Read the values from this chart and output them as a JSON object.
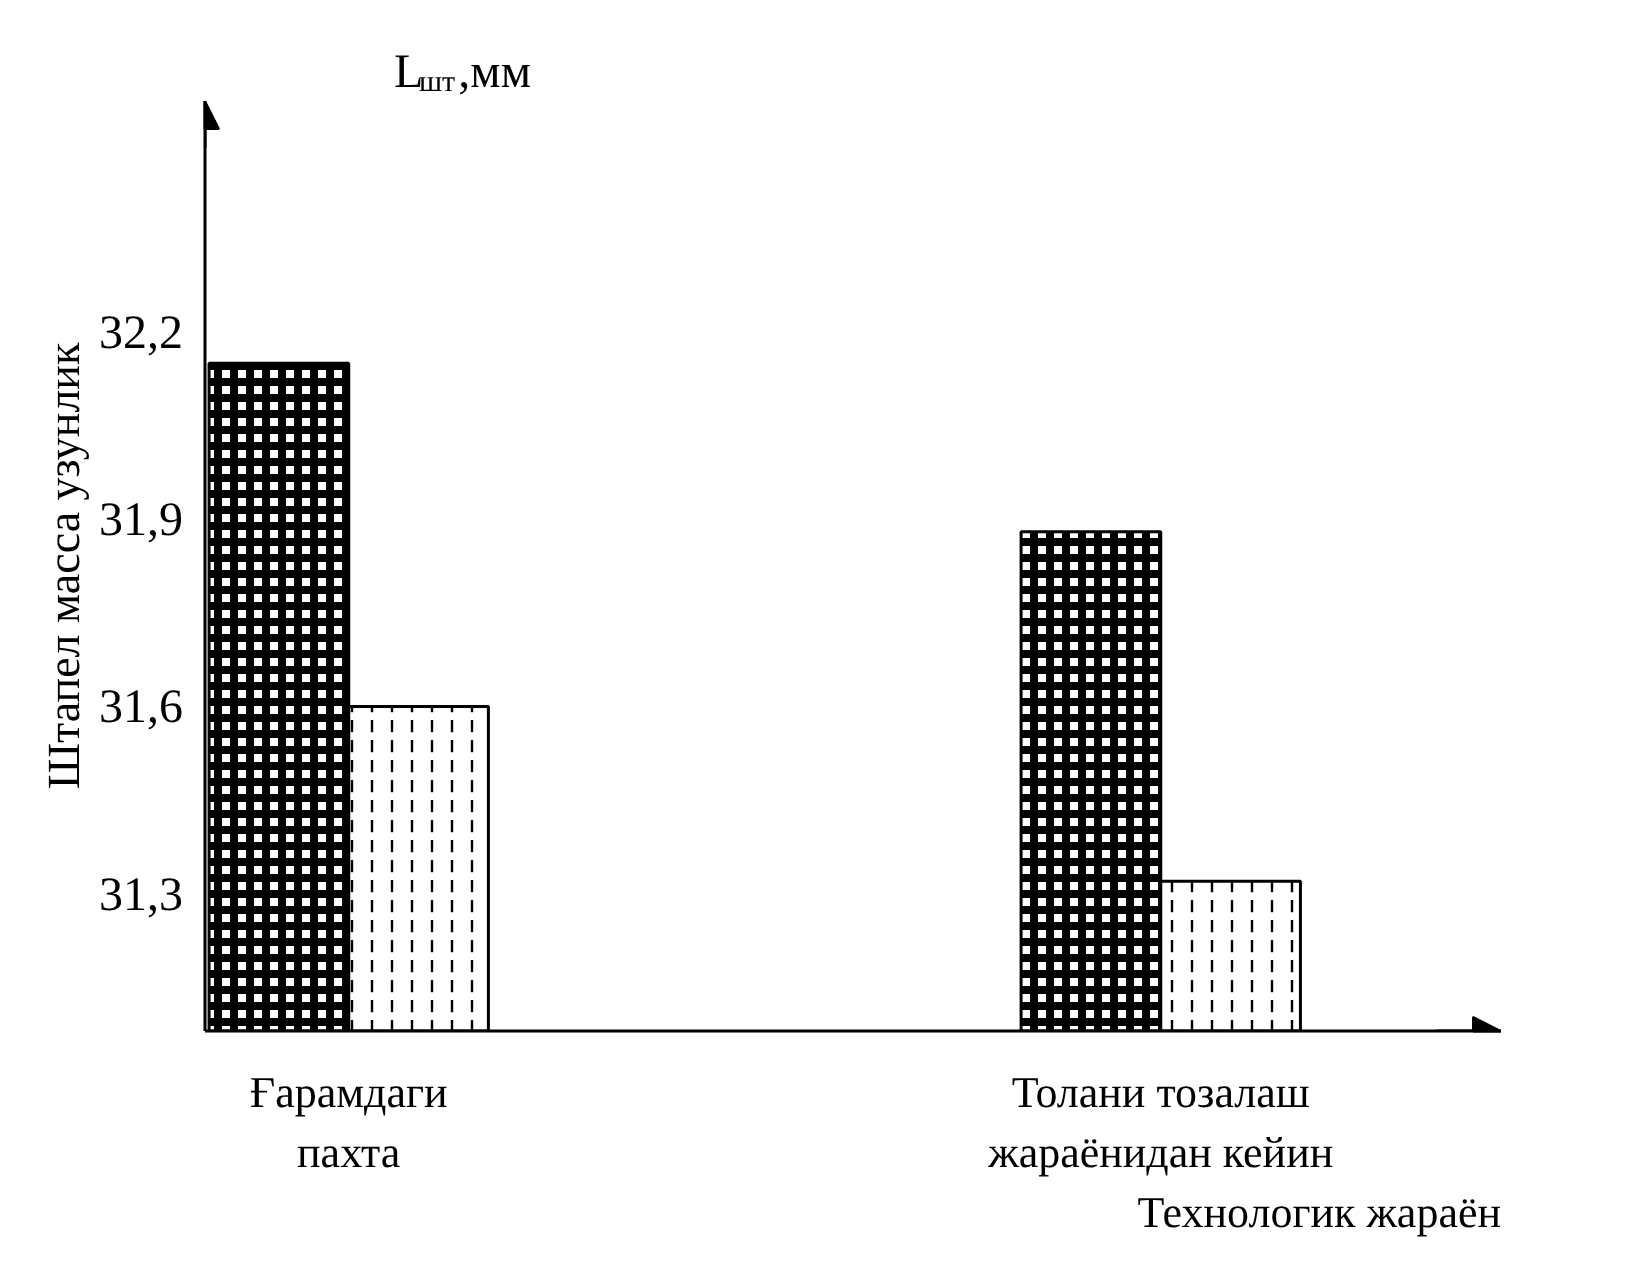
{
  "chart_data": {
    "type": "bar",
    "title": "L$_{шт}$,мм",
    "ylabel": "Штапел масса узунлик",
    "xlabel": "Технологик жараён",
    "categories": [
      "Ғарамдаги пахта",
      "Толани тозалаш жараёнидан кейин"
    ],
    "series": [
      {
        "color": "#000000",
        "values": [
          32.15,
          31.88
        ]
      },
      {
        "color": "#000000",
        "values": [
          31.6,
          31.32
        ]
      }
    ],
    "ylim": [
      31.08,
      32.57
    ],
    "yticks": [
      {
        "value": 31.3,
        "label": "31,3"
      },
      {
        "value": 31.6,
        "label": "31,6"
      },
      {
        "value": 31.9,
        "label": "31,9"
      },
      {
        "value": 32.2,
        "label": "32,2"
      }
    ],
    "grid": false
  }
}
